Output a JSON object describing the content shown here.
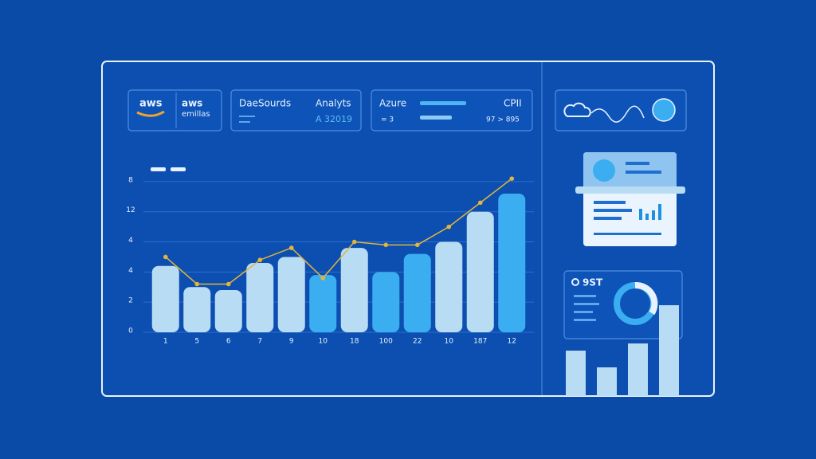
{
  "header": {
    "logo": "aws",
    "card1": {
      "title": "aws",
      "subtitle": "emillas"
    },
    "card2": {
      "title": "DaeSourds",
      "label": "Analyts",
      "value": "A 32019"
    },
    "card3": {
      "title": "Azure",
      "label": "CPII",
      "left": "= 3",
      "right": "97 > 895"
    }
  },
  "side": {
    "stat": "9ST"
  },
  "chart_data": {
    "type": "bar",
    "categories": [
      "1",
      "5",
      "6",
      "7",
      "9",
      "10",
      "18",
      "100",
      "22",
      "10",
      "187",
      "12"
    ],
    "values": [
      2.2,
      1.5,
      1.4,
      2.3,
      2.5,
      1.9,
      2.8,
      2.0,
      2.6,
      3.0,
      4.0,
      4.6
    ],
    "colors": [
      "#b9dcf5",
      "#b9dcf5",
      "#b9dcf5",
      "#b9dcf5",
      "#b9dcf5",
      "#3aaef0",
      "#b9dcf5",
      "#3aaef0",
      "#3aaef0",
      "#b9dcf5",
      "#b9dcf5",
      "#3aaef0"
    ],
    "line": {
      "color": "#e2b53b",
      "values": [
        2.5,
        1.6,
        1.6,
        2.4,
        2.8,
        1.8,
        3.0,
        2.9,
        2.9,
        3.5,
        4.3,
        5.1
      ]
    },
    "ylim": [
      0,
      5.5
    ],
    "yticks": [
      0,
      {
        "value": 1,
        "label": "2"
      },
      {
        "value": 2,
        "label": "4"
      },
      {
        "value": 3,
        "label": "4"
      },
      {
        "value": 4,
        "label": "12"
      },
      {
        "value": 5,
        "label": "8"
      }
    ],
    "grid": true
  }
}
